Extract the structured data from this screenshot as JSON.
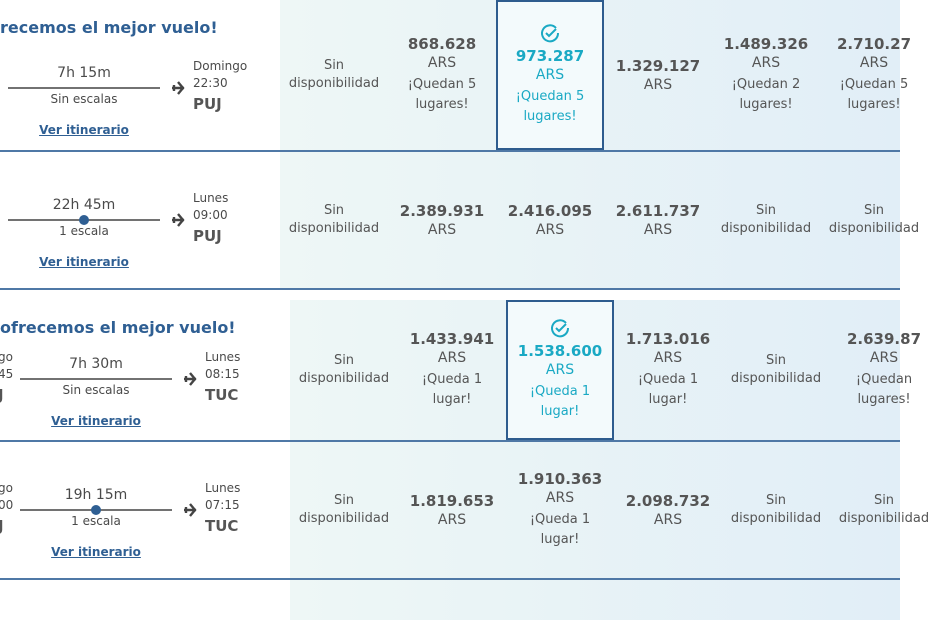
{
  "rows": [
    {
      "banner": "recemos el mejor vuelo!",
      "duration": "7h 15m",
      "stops": "Sin escalas",
      "arrival": {
        "day": "Domingo",
        "time": "22:30",
        "airport": "PUJ"
      },
      "link": "Ver itinerario",
      "fares": [
        {
          "status": "Sin disponibilidad"
        },
        {
          "price": "868.628",
          "currency": "ARS",
          "note": "¡Quedan 5 lugares!"
        },
        {
          "price": "973.287",
          "currency": "ARS",
          "note": "¡Quedan 5 lugares!",
          "selected": true
        },
        {
          "price": "1.329.127",
          "currency": "ARS"
        },
        {
          "price": "1.489.326",
          "currency": "ARS",
          "note": "¡Quedan 2 lugares!"
        },
        {
          "price": "2.710.27",
          "currency": "ARS",
          "note": "¡Quedan 5 lugares!"
        }
      ]
    },
    {
      "duration": "22h 45m",
      "stops": "1 escala",
      "arrival": {
        "day": "Lunes",
        "time": "09:00",
        "airport": "PUJ"
      },
      "link": "Ver itinerario",
      "fares": [
        {
          "status": "Sin disponibilidad"
        },
        {
          "price": "2.389.931",
          "currency": "ARS"
        },
        {
          "price": "2.416.095",
          "currency": "ARS"
        },
        {
          "price": "2.611.737",
          "currency": "ARS"
        },
        {
          "status": "Sin disponibilidad"
        },
        {
          "status": "Sin disponibilidad"
        }
      ]
    },
    {
      "banner": "ofrecemos el mejor vuelo!",
      "departure": {
        "day": "go",
        "time": "45",
        "airport": "J"
      },
      "duration": "7h 30m",
      "stops": "Sin escalas",
      "arrival": {
        "day": "Lunes",
        "time": "08:15",
        "airport": "TUC"
      },
      "link": "Ver itinerario",
      "fares": [
        {
          "status": "Sin disponibilidad"
        },
        {
          "price": "1.433.941",
          "currency": "ARS",
          "note": "¡Queda 1 lugar!"
        },
        {
          "price": "1.538.600",
          "currency": "ARS",
          "note": "¡Queda 1 lugar!",
          "selected": true
        },
        {
          "price": "1.713.016",
          "currency": "ARS",
          "note": "¡Queda 1 lugar!"
        },
        {
          "status": "Sin disponibilidad"
        },
        {
          "price": "2.639.87",
          "currency": "ARS",
          "note": "¡Quedan lugares!"
        }
      ]
    },
    {
      "departure": {
        "day": "go",
        "time": "00",
        "airport": "J"
      },
      "duration": "19h 15m",
      "stops": "1 escala",
      "arrival": {
        "day": "Lunes",
        "time": "07:15",
        "airport": "TUC"
      },
      "link": "Ver itinerario",
      "fares": [
        {
          "status": "Sin disponibilidad"
        },
        {
          "price": "1.819.653",
          "currency": "ARS"
        },
        {
          "price": "1.910.363",
          "currency": "ARS",
          "note": "¡Queda 1 lugar!"
        },
        {
          "price": "2.098.732",
          "currency": "ARS"
        },
        {
          "status": "Sin disponibilidad"
        },
        {
          "status": "Sin disponibilidad"
        }
      ]
    }
  ]
}
